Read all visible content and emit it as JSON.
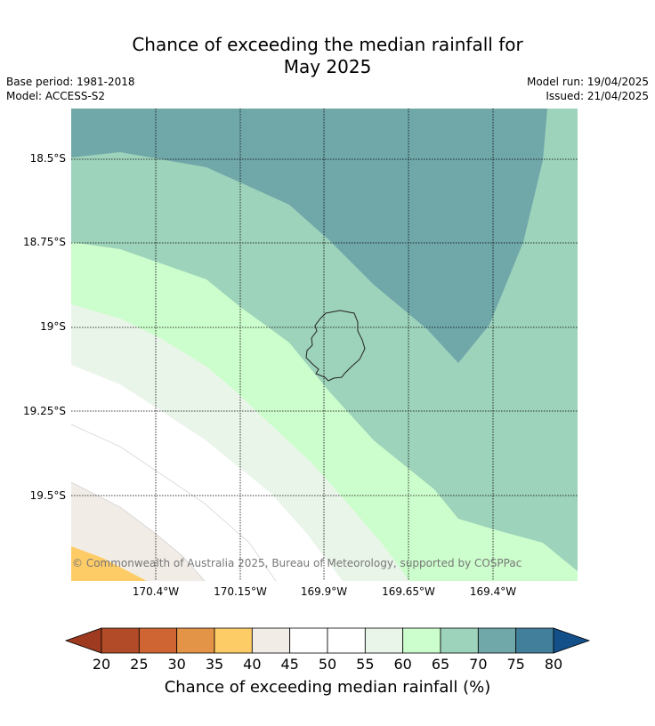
{
  "title_line1": "Chance of exceeding the median rainfall for",
  "title_line2": "May 2025",
  "base_period": "Base period: 1981-2018",
  "model": "Model: ACCESS-S2",
  "model_run": "Model run: 19/04/2025",
  "issued": "Issued: 21/04/2025",
  "copyright": "© Commonwealth of Australia 2025, Bureau of Meteorology, supported by COSPPac",
  "lat_labels": [
    "18.5°S",
    "18.75°S",
    "19°S",
    "19.25°S",
    "19.5°S"
  ],
  "lon_labels": [
    "170.4°W",
    "170.15°W",
    "169.9°W",
    "169.65°W",
    "169.4°W"
  ],
  "colorbar": {
    "label": "Chance of exceeding median rainfall (%)",
    "ticks": [
      "20",
      "25",
      "30",
      "35",
      "40",
      "45",
      "50",
      "55",
      "60",
      "65",
      "70",
      "75",
      "80"
    ],
    "colors": {
      "under": "#9e3a1f",
      "20-25": "#b24c28",
      "25-30": "#cf6533",
      "30-35": "#e39446",
      "35-40": "#fecc66",
      "40-45": "#f1ece6",
      "45-50": "#ffffff",
      "50-55": "#ffffff",
      "55-60": "#eaf5ea",
      "60-65": "#ccfdcc",
      "65-70": "#9dd2bb",
      "70-75": "#70a7a9",
      "75-80": "#417f9a",
      "over": "#13508a"
    }
  }
}
